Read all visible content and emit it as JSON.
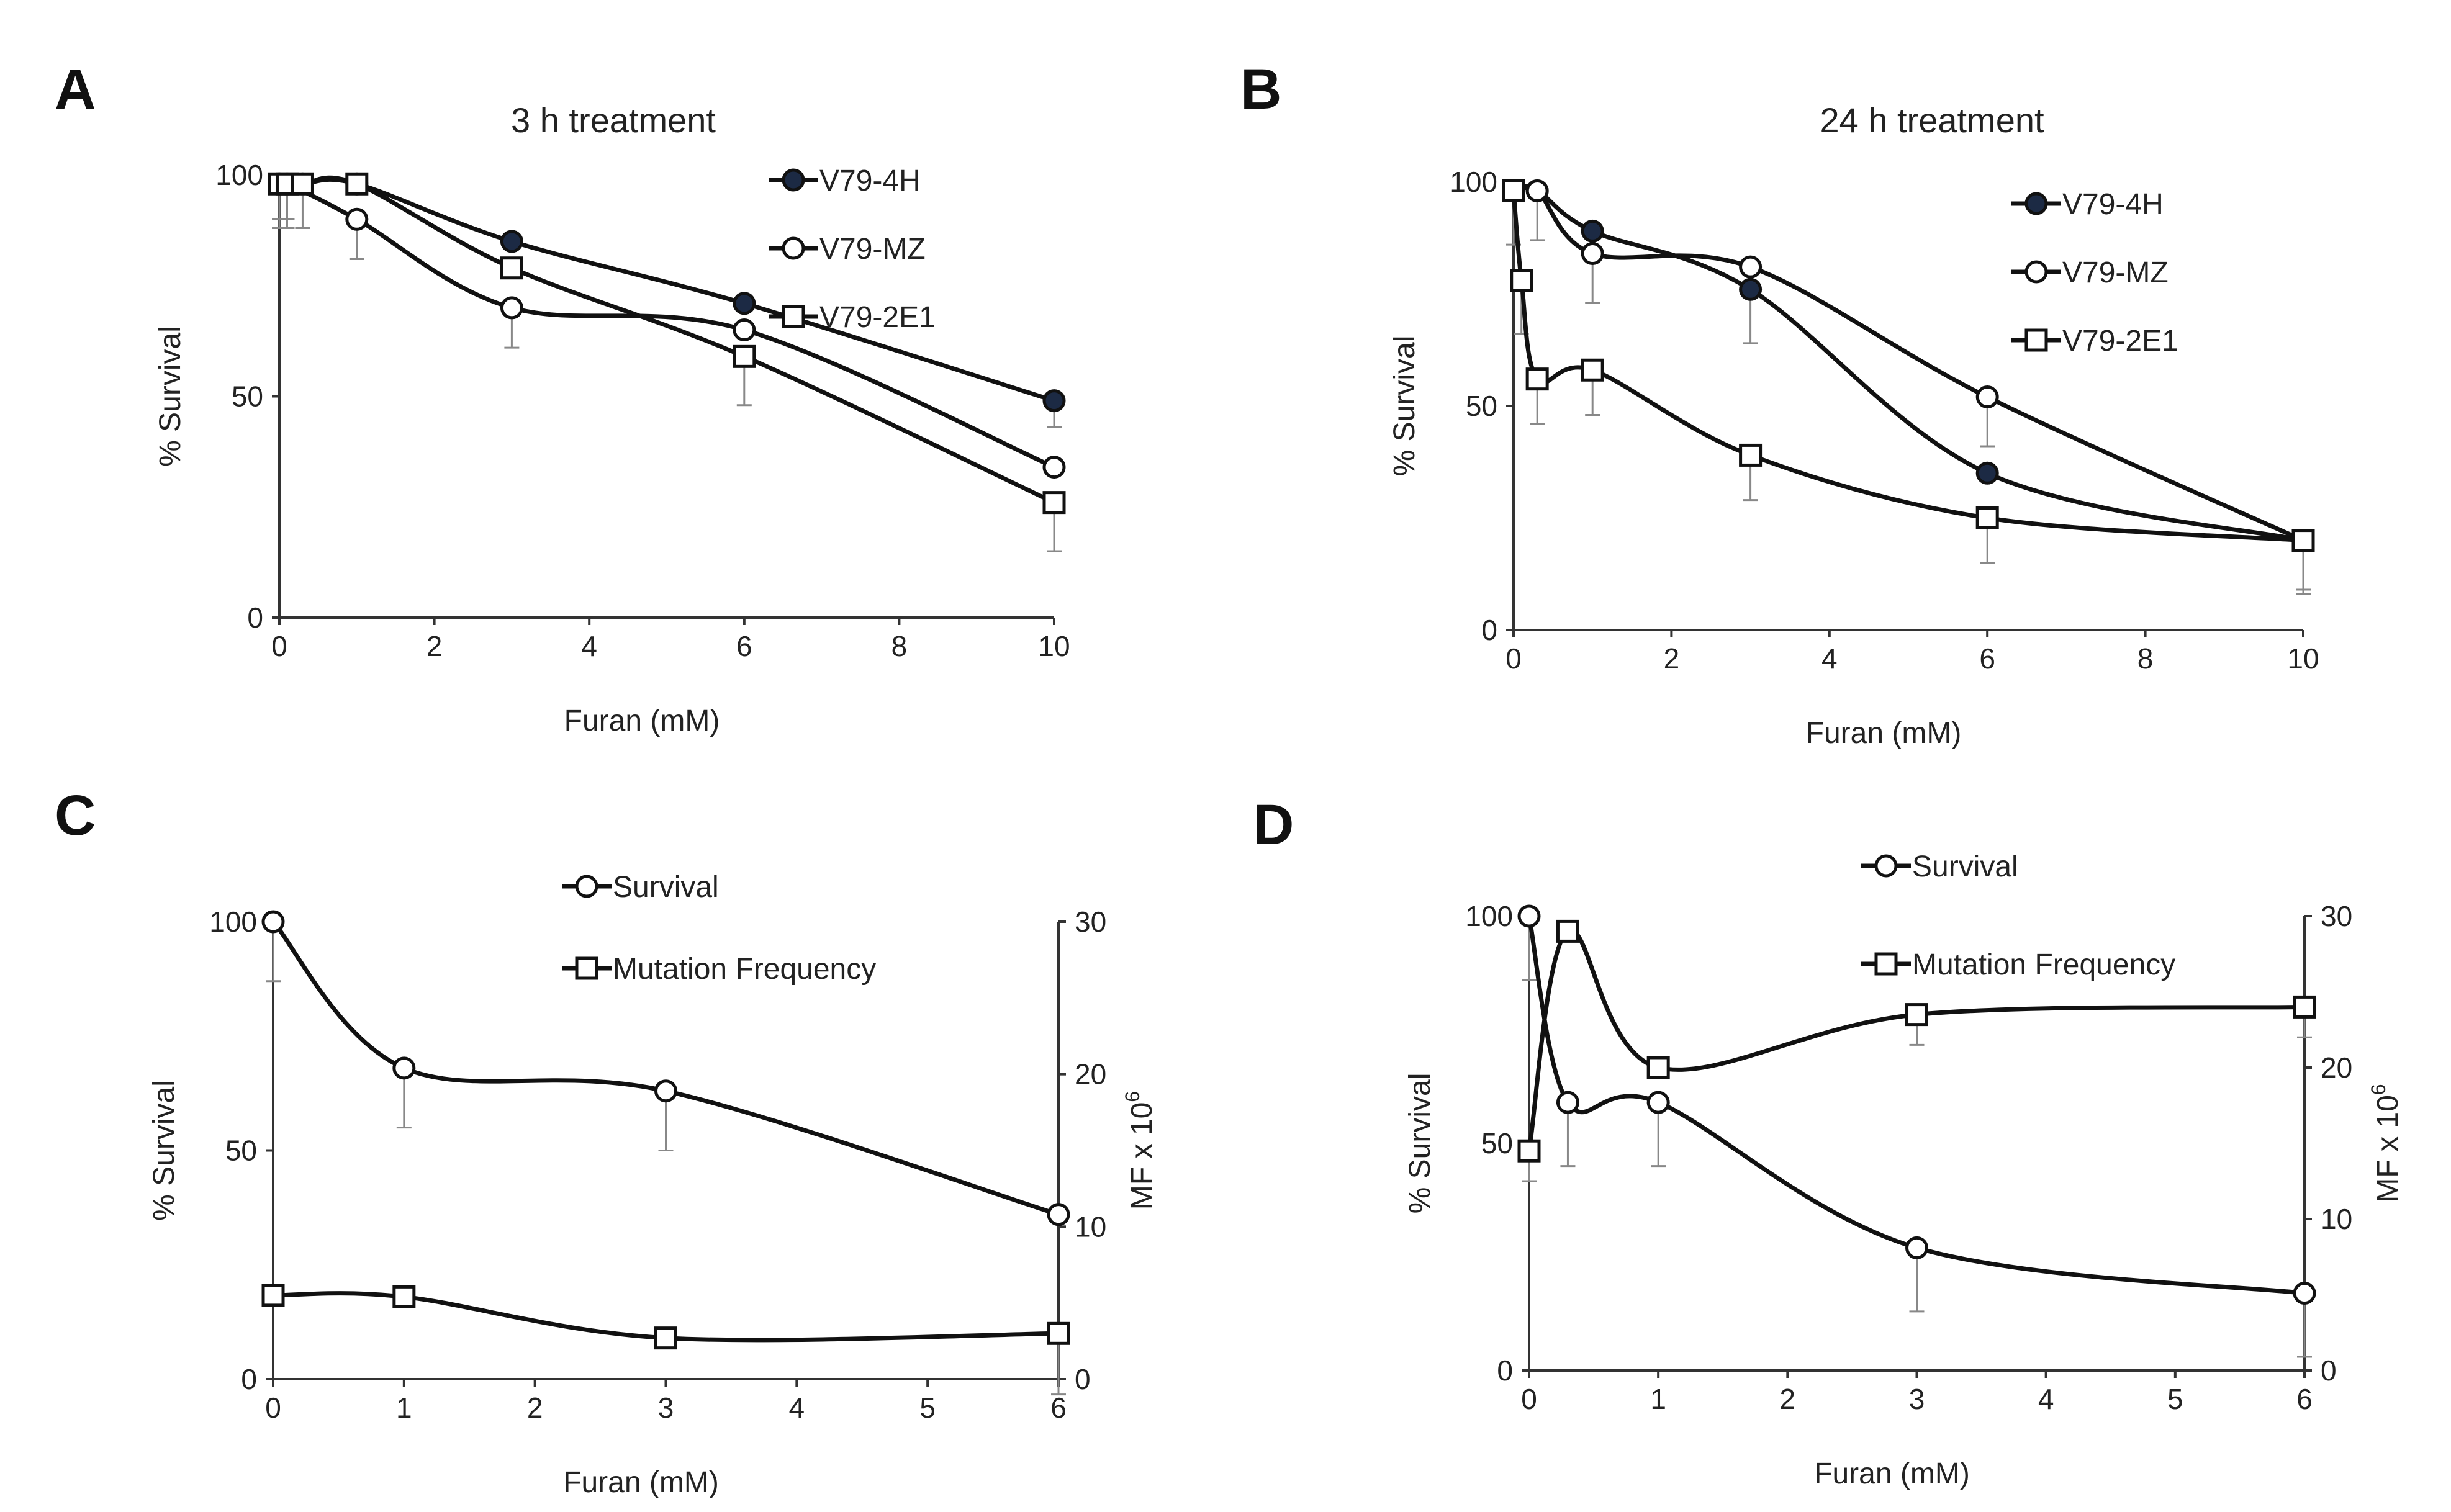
{
  "chart_data": [
    {
      "panel": "A",
      "type": "line",
      "title": "3 h treatment",
      "xlabel": "Furan (mM)",
      "ylabel": "% Survival",
      "xlim": [
        0,
        10
      ],
      "ylim": [
        0,
        100
      ],
      "xticks": [
        0,
        2,
        4,
        6,
        8,
        10
      ],
      "yticks": [
        0,
        50,
        100
      ],
      "legend_position": "top-right",
      "series": [
        {
          "name": "V79-4H",
          "marker": "filled-circle",
          "x": [
            0,
            0.3,
            1,
            3,
            6,
            10
          ],
          "y": [
            98,
            98,
            98,
            85,
            71,
            49
          ],
          "err": [
            0,
            0,
            0,
            0,
            0,
            6
          ]
        },
        {
          "name": "V79-MZ",
          "marker": "open-circle",
          "x": [
            0,
            0.1,
            1,
            3,
            6,
            10
          ],
          "y": [
            98,
            98,
            90,
            70,
            65,
            34
          ],
          "err": [
            8,
            8,
            9,
            9,
            0,
            0
          ]
        },
        {
          "name": "V79-2E1",
          "marker": "open-square",
          "x": [
            0,
            0.1,
            0.3,
            1,
            3,
            6,
            10
          ],
          "y": [
            98,
            98,
            98,
            98,
            79,
            59,
            26
          ],
          "err": [
            10,
            10,
            10,
            0,
            0,
            11,
            11
          ]
        }
      ]
    },
    {
      "panel": "B",
      "type": "line",
      "title": "24 h treatment",
      "xlabel": "Furan (mM)",
      "ylabel": "% Survival",
      "xlim": [
        0,
        10
      ],
      "ylim": [
        0,
        100
      ],
      "xticks": [
        0,
        2,
        4,
        6,
        8,
        10
      ],
      "yticks": [
        0,
        50,
        100
      ],
      "legend_position": "top-right",
      "series": [
        {
          "name": "V79-4H",
          "marker": "filled-circle",
          "x": [
            0,
            0.3,
            1,
            3,
            6,
            10
          ],
          "y": [
            98,
            98,
            89,
            76,
            35,
            20
          ],
          "err": [
            0,
            11,
            16,
            12,
            0,
            12
          ]
        },
        {
          "name": "V79-MZ",
          "marker": "open-circle",
          "x": [
            0,
            0.3,
            1,
            3,
            6,
            10
          ],
          "y": [
            98,
            98,
            84,
            81,
            52,
            20
          ],
          "err": [
            0,
            0,
            0,
            0,
            11,
            0
          ]
        },
        {
          "name": "V79-2E1",
          "marker": "open-square",
          "x": [
            0,
            0.1,
            0.3,
            1,
            3,
            6,
            10
          ],
          "y": [
            98,
            78,
            56,
            58,
            39,
            25,
            20
          ],
          "err": [
            12,
            12,
            10,
            10,
            10,
            10,
            11
          ]
        }
      ]
    },
    {
      "panel": "C",
      "type": "line",
      "xlabel": "Furan (mM)",
      "ylabel": "% Survival",
      "y2label": "MF x 10",
      "y2label_exponent": "6",
      "xlim": [
        0,
        6
      ],
      "ylim": [
        0,
        100
      ],
      "y2lim": [
        0,
        30
      ],
      "xticks": [
        0,
        1,
        2,
        3,
        4,
        5,
        6
      ],
      "yticks": [
        0,
        50,
        100
      ],
      "y2ticks": [
        0,
        10,
        20,
        30
      ],
      "legend_position": "top-center",
      "series": [
        {
          "name": "Survival",
          "marker": "open-circle",
          "axis": "left",
          "x": [
            0,
            1,
            3,
            6
          ],
          "y": [
            100,
            68,
            63,
            36
          ],
          "err": [
            13,
            13,
            13,
            0
          ]
        },
        {
          "name": "Mutation Frequency",
          "marker": "open-square",
          "axis": "right",
          "x": [
            0,
            1,
            3,
            6
          ],
          "y": [
            5.5,
            5.4,
            2.7,
            3.0
          ],
          "err": [
            0,
            0,
            0,
            4
          ]
        }
      ]
    },
    {
      "panel": "D",
      "type": "line",
      "xlabel": "Furan (mM)",
      "ylabel": "% Survival",
      "y2label": "MF x 10",
      "y2label_exponent": "6",
      "xlim": [
        0,
        6
      ],
      "ylim": [
        0,
        100
      ],
      "y2lim": [
        0,
        30
      ],
      "xticks": [
        0,
        1,
        2,
        3,
        4,
        5,
        6
      ],
      "yticks": [
        0,
        50,
        100
      ],
      "y2ticks": [
        0,
        10,
        20,
        30
      ],
      "legend_position": "top-center",
      "series": [
        {
          "name": "Survival",
          "marker": "open-circle",
          "axis": "left",
          "x": [
            0,
            0.3,
            1,
            3,
            6
          ],
          "y": [
            100,
            59,
            59,
            27,
            17
          ],
          "err": [
            14,
            14,
            14,
            14,
            14
          ]
        },
        {
          "name": "Mutation Frequency",
          "marker": "open-square",
          "axis": "right",
          "x": [
            0,
            0.3,
            1,
            3,
            6
          ],
          "y": [
            14.5,
            29.0,
            20.0,
            23.5,
            24.0
          ],
          "err": [
            2,
            0,
            0,
            2,
            2
          ]
        }
      ]
    }
  ]
}
